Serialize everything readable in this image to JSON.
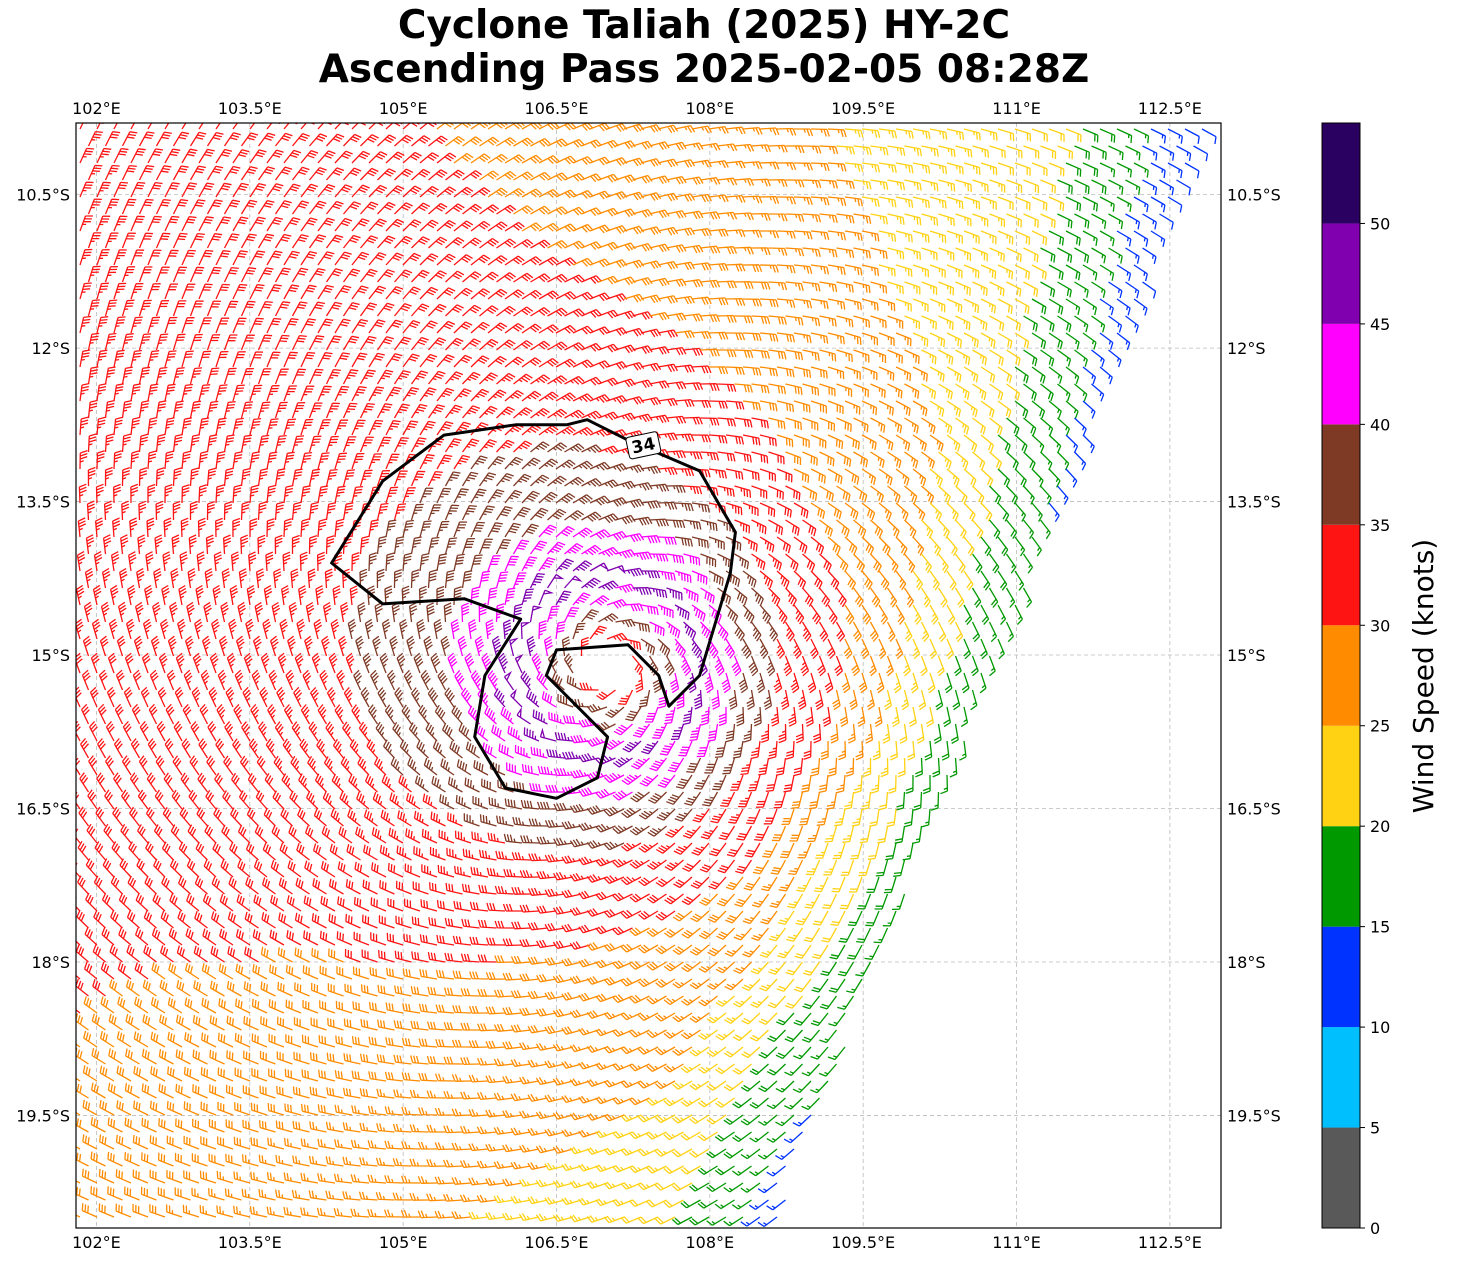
{
  "title": {
    "line1": "Cyclone Taliah (2025) HY-2C",
    "line2": "Ascending Pass 2025-02-05 08:28Z"
  },
  "map": {
    "lon_range": [
      101.8,
      113.0
    ],
    "lat_range": [
      -9.8,
      -20.6
    ],
    "lon_ticks": [
      {
        "value": 102.0,
        "label": "102°E"
      },
      {
        "value": 103.5,
        "label": "103.5°E"
      },
      {
        "value": 105.0,
        "label": "105°E"
      },
      {
        "value": 106.5,
        "label": "106.5°E"
      },
      {
        "value": 108.0,
        "label": "108°E"
      },
      {
        "value": 109.5,
        "label": "109.5°E"
      },
      {
        "value": 111.0,
        "label": "111°E"
      },
      {
        "value": 112.5,
        "label": "112.5°E"
      }
    ],
    "lat_ticks": [
      {
        "value": -10.5,
        "label": "10.5°S"
      },
      {
        "value": -12.0,
        "label": "12°S"
      },
      {
        "value": -13.5,
        "label": "13.5°S"
      },
      {
        "value": -15.0,
        "label": "15°S"
      },
      {
        "value": -16.5,
        "label": "16.5°S"
      },
      {
        "value": -18.0,
        "label": "18°S"
      },
      {
        "value": -19.5,
        "label": "19.5°S"
      }
    ],
    "gridlines": true,
    "storm_center": {
      "lon": 107.0,
      "lat": -15.1
    },
    "swath_east_edge": [
      [
        112.9,
        -9.8
      ],
      [
        108.7,
        -20.6
      ]
    ],
    "contour": {
      "level_label": "34",
      "color": "#000000",
      "main_loop": [
        [
          106.1,
          -12.75
        ],
        [
          105.4,
          -12.85
        ],
        [
          104.8,
          -13.3
        ],
        [
          104.3,
          -14.1
        ],
        [
          104.8,
          -14.5
        ],
        [
          105.6,
          -14.45
        ],
        [
          106.15,
          -14.65
        ],
        [
          105.8,
          -15.2
        ],
        [
          105.7,
          -15.8
        ],
        [
          106.0,
          -16.3
        ],
        [
          106.5,
          -16.4
        ],
        [
          106.9,
          -16.2
        ],
        [
          107.0,
          -15.8
        ],
        [
          106.7,
          -15.5
        ],
        [
          106.4,
          -15.2
        ],
        [
          106.5,
          -14.95
        ],
        [
          107.2,
          -14.9
        ],
        [
          107.5,
          -15.2
        ],
        [
          107.6,
          -15.5
        ],
        [
          107.9,
          -15.2
        ],
        [
          108.2,
          -14.2
        ],
        [
          108.25,
          -13.8
        ],
        [
          107.9,
          -13.2
        ],
        [
          107.2,
          -12.9
        ],
        [
          106.8,
          -12.7
        ],
        [
          106.6,
          -12.75
        ],
        [
          106.1,
          -12.75
        ]
      ],
      "label_position": {
        "lon": 107.35,
        "lat": -12.95
      }
    },
    "barbs": [
      {
        "name": "barb-1",
        "lon": 103.0,
        "lat": -10.2,
        "speed": 32,
        "direction": 150
      },
      {
        "name": "barb-2",
        "lon": 105.0,
        "lat": -10.6,
        "speed": 36,
        "direction": 120
      }
    ]
  },
  "chart_data": {
    "type": "wind_barbs",
    "units": "knots",
    "field_description": "HY-2C scatterometer wind barbs, cyclonic (clockwise, Southern Hemisphere) circulation",
    "wind_speed_model": {
      "center_lon": 107.0,
      "center_lat": -15.1,
      "peak_speed_kt": 48,
      "radius_of_max_wind_deg": 0.9,
      "outer_speed_kt": 18
    },
    "contour_level_kt": 34
  },
  "colorbar": {
    "label": "Wind Speed (knots)",
    "bins": [
      {
        "from": 0,
        "to": 5,
        "color": "#595959"
      },
      {
        "from": 5,
        "to": 10,
        "color": "#00bfff"
      },
      {
        "from": 10,
        "to": 15,
        "color": "#0033ff"
      },
      {
        "from": 15,
        "to": 20,
        "color": "#009900"
      },
      {
        "from": 20,
        "to": 25,
        "color": "#ffd214"
      },
      {
        "from": 25,
        "to": 30,
        "color": "#ff8c00"
      },
      {
        "from": 30,
        "to": 35,
        "color": "#ff1414"
      },
      {
        "from": 35,
        "to": 40,
        "color": "#7f3a26"
      },
      {
        "from": 40,
        "to": 45,
        "color": "#ff00ff"
      },
      {
        "from": 45,
        "to": 50,
        "color": "#8000b0"
      },
      {
        "from": 50,
        "to": 55,
        "color": "#2a0060"
      }
    ],
    "ticks": [
      "0",
      "5",
      "10",
      "15",
      "20",
      "25",
      "30",
      "35",
      "40",
      "45",
      "50"
    ]
  }
}
